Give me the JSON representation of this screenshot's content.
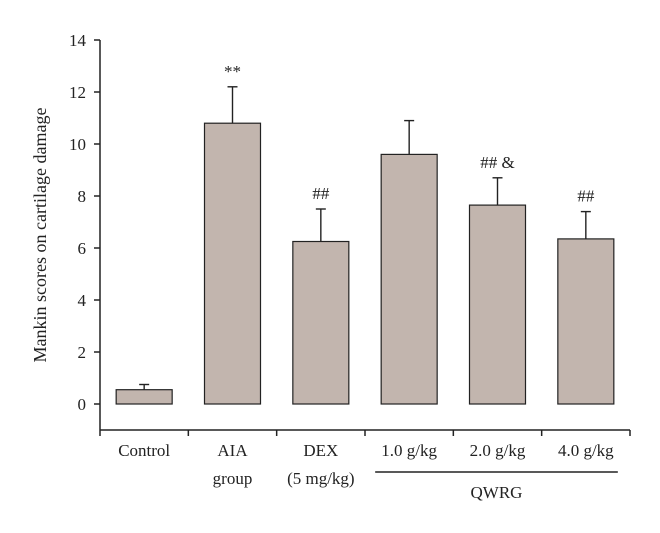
{
  "chart_data": {
    "type": "bar",
    "ylabel": "Mankin scores on cartilage damage",
    "xlabel": "",
    "title": "",
    "ylim": [
      -1,
      14
    ],
    "yticks": [
      0,
      2,
      4,
      6,
      8,
      10,
      12,
      14
    ],
    "categories": [
      [
        "Control"
      ],
      [
        "AIA",
        "group"
      ],
      [
        "DEX",
        "(5 mg/kg)"
      ],
      [
        "1.0 g/kg"
      ],
      [
        "2.0 g/kg"
      ],
      [
        "4.0 g/kg"
      ]
    ],
    "values": [
      0.55,
      10.8,
      6.25,
      9.6,
      7.65,
      6.35
    ],
    "errors": [
      0.2,
      1.4,
      1.25,
      1.3,
      1.05,
      1.05
    ],
    "annotations": [
      "",
      "**",
      "##",
      "",
      "## &",
      "##"
    ],
    "group": {
      "label": "QWRG",
      "from_index": 3,
      "to_index": 5
    },
    "bar_color": "#c2b5ae",
    "grid": false
  }
}
